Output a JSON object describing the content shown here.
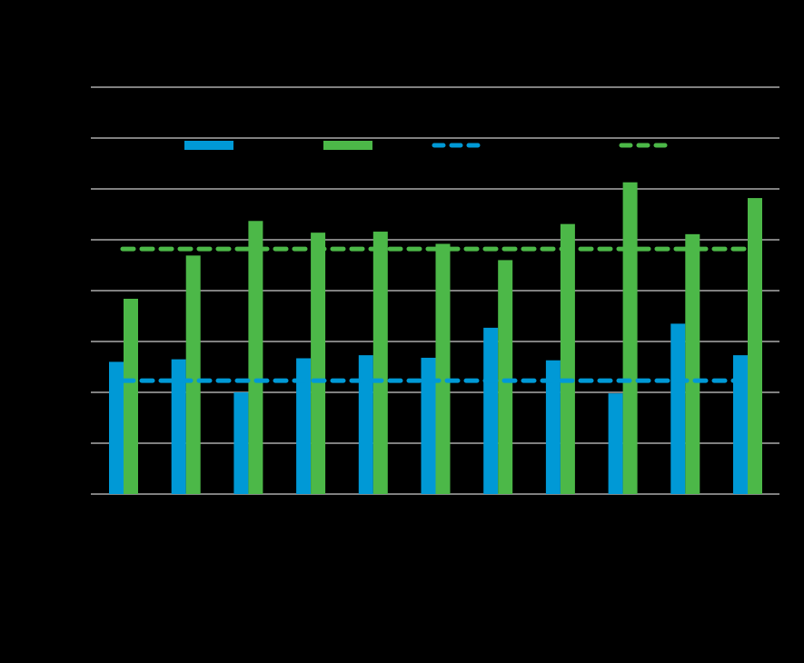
{
  "chart_data": {
    "type": "bar",
    "title": "",
    "xlabel": "",
    "ylabel": "",
    "categories": [
      "",
      "",
      "",
      "",
      "",
      "",
      "",
      "",
      "",
      "",
      ""
    ],
    "ylim": [
      0,
      8
    ],
    "grid": true,
    "legend_position": "top",
    "series": [
      {
        "color": "#0099D6",
        "kind": "bar",
        "values": [
          2.6,
          2.65,
          2.0,
          2.67,
          2.73,
          2.68,
          3.27,
          2.63,
          1.98,
          3.35,
          2.73
        ]
      },
      {
        "color": "#4CB848",
        "kind": "bar",
        "values": [
          3.84,
          4.69,
          5.37,
          5.14,
          5.16,
          4.92,
          4.6,
          5.31,
          6.13,
          5.11,
          5.82
        ]
      },
      {
        "color": "#0099D6",
        "kind": "dashed-line",
        "value": 2.23
      },
      {
        "color": "#4CB848",
        "kind": "dashed-line",
        "value": 4.82
      }
    ]
  },
  "colors": {
    "background": "#000000",
    "gridline": "#FFFFFF",
    "series_blue": "#0099D6",
    "series_green": "#4CB848"
  }
}
